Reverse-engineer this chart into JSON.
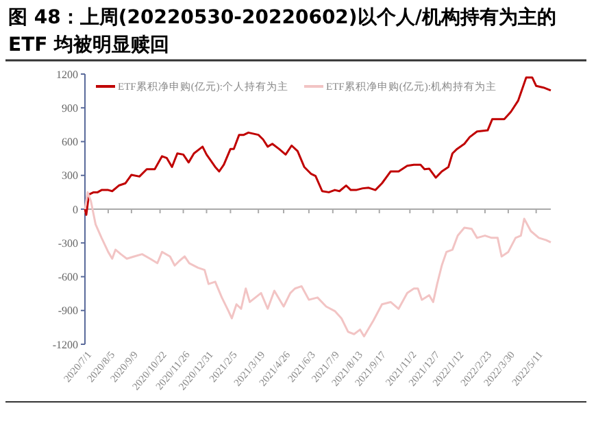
{
  "chart_data": {
    "type": "line",
    "title": "图 48：上周(20220530-20220602)以个人/机构持有为主的 ETF 均被明显赎回",
    "xlim": [
      "2020-07-01",
      "2022-06-02"
    ],
    "xticks": [
      {
        "value": "2020-07-01",
        "label": "2020/7/1"
      },
      {
        "value": "2020-08-05",
        "label": "2020/8/5"
      },
      {
        "value": "2020-09-09",
        "label": "2020/9/9"
      },
      {
        "value": "2020-10-22",
        "label": "2020/10/22"
      },
      {
        "value": "2020-11-26",
        "label": "2020/11/26"
      },
      {
        "value": "2020-12-31",
        "label": "2020/12/31"
      },
      {
        "value": "2021-02-05",
        "label": "2021/2/5"
      },
      {
        "value": "2021-03-19",
        "label": "2021/3/19"
      },
      {
        "value": "2021-04-26",
        "label": "2021/4/26"
      },
      {
        "value": "2021-06-03",
        "label": "2021/6/3"
      },
      {
        "value": "2021-07-09",
        "label": "2021/7/9"
      },
      {
        "value": "2021-08-13",
        "label": "2021/8/13"
      },
      {
        "value": "2021-09-17",
        "label": "2021/9/17"
      },
      {
        "value": "2021-11-02",
        "label": "2021/11/2"
      },
      {
        "value": "2021-12-07",
        "label": "2021/12/7"
      },
      {
        "value": "2022-01-12",
        "label": "2022/1/12"
      },
      {
        "value": "2022-02-23",
        "label": "2022/2/23"
      },
      {
        "value": "2022-03-30",
        "label": "2022/3/30"
      },
      {
        "value": "2022-05-11",
        "label": "2022/5/11"
      }
    ],
    "ylim": [
      -1200,
      1200
    ],
    "yticks": [
      -1200,
      -900,
      -600,
      -300,
      0,
      300,
      600,
      900,
      1200
    ],
    "legend": "top",
    "series": [
      {
        "name": "ETF累积净申购(亿元):个人持有为主",
        "color": "#c00000",
        "x": [
          "2020-07-01",
          "2020-07-03",
          "2020-07-07",
          "2020-07-14",
          "2020-07-20",
          "2020-07-26",
          "2020-08-05",
          "2020-08-11",
          "2020-08-21",
          "2020-08-31",
          "2020-09-09",
          "2020-09-21",
          "2020-10-02",
          "2020-10-14",
          "2020-10-25",
          "2020-11-01",
          "2020-11-09",
          "2020-11-17",
          "2020-11-26",
          "2020-12-04",
          "2020-12-12",
          "2020-12-25",
          "2020-12-31",
          "2021-01-06",
          "2021-01-13",
          "2021-01-19",
          "2021-01-26",
          "2021-02-05",
          "2021-02-10",
          "2021-02-18",
          "2021-02-25",
          "2021-03-04",
          "2021-03-19",
          "2021-03-26",
          "2021-04-02",
          "2021-04-09",
          "2021-04-19",
          "2021-04-29",
          "2021-05-08",
          "2021-05-17",
          "2021-05-27",
          "2021-06-06",
          "2021-06-13",
          "2021-06-23",
          "2021-07-03",
          "2021-07-12",
          "2021-07-19",
          "2021-07-29",
          "2021-08-05",
          "2021-08-13",
          "2021-08-23",
          "2021-09-01",
          "2021-09-11",
          "2021-09-21",
          "2021-10-04",
          "2021-10-16",
          "2021-10-29",
          "2021-11-08",
          "2021-11-18",
          "2021-11-24",
          "2021-12-01",
          "2021-12-11",
          "2021-12-20",
          "2021-12-30",
          "2022-01-05",
          "2022-01-12",
          "2022-01-23",
          "2022-01-31",
          "2022-02-11",
          "2022-02-27",
          "2022-03-06",
          "2022-03-14",
          "2022-03-24",
          "2022-04-03",
          "2022-04-14",
          "2022-04-26",
          "2022-05-05",
          "2022-05-11",
          "2022-05-22",
          "2022-06-02"
        ],
        "values": [
          0,
          -50,
          130,
          150,
          150,
          170,
          170,
          160,
          210,
          230,
          305,
          290,
          355,
          355,
          470,
          455,
          375,
          495,
          485,
          415,
          495,
          555,
          485,
          435,
          375,
          335,
          395,
          535,
          535,
          660,
          660,
          680,
          660,
          620,
          555,
          580,
          535,
          485,
          565,
          515,
          375,
          315,
          295,
          160,
          150,
          170,
          160,
          210,
          170,
          170,
          185,
          190,
          170,
          230,
          335,
          335,
          385,
          395,
          395,
          355,
          360,
          280,
          335,
          375,
          495,
          535,
          580,
          640,
          690,
          700,
          800,
          800,
          800,
          865,
          965,
          1170,
          1170,
          1095,
          1080,
          1055
        ]
      },
      {
        "name": "ETF累积净申购(亿元):机构持有为主",
        "color": "#f2c4c4",
        "x": [
          "2020-07-01",
          "2020-07-05",
          "2020-07-10",
          "2020-07-17",
          "2020-07-26",
          "2020-08-05",
          "2020-08-11",
          "2020-08-16",
          "2020-08-24",
          "2020-09-02",
          "2020-09-13",
          "2020-09-25",
          "2020-10-07",
          "2020-10-18",
          "2020-10-25",
          "2020-11-06",
          "2020-11-13",
          "2020-11-20",
          "2020-11-28",
          "2020-12-05",
          "2020-12-18",
          "2020-12-28",
          "2021-01-03",
          "2021-01-13",
          "2021-01-23",
          "2021-02-02",
          "2021-02-07",
          "2021-02-14",
          "2021-02-21",
          "2021-02-28",
          "2021-03-06",
          "2021-03-23",
          "2021-04-02",
          "2021-04-12",
          "2021-04-26",
          "2021-05-06",
          "2021-05-13",
          "2021-05-23",
          "2021-06-03",
          "2021-06-16",
          "2021-06-29",
          "2021-07-12",
          "2021-07-22",
          "2021-08-01",
          "2021-08-10",
          "2021-08-19",
          "2021-08-25",
          "2021-09-08",
          "2021-09-21",
          "2021-10-04",
          "2021-10-16",
          "2021-10-29",
          "2021-11-08",
          "2021-11-14",
          "2021-11-20",
          "2021-12-01",
          "2021-12-07",
          "2021-12-13",
          "2021-12-20",
          "2021-12-27",
          "2022-01-05",
          "2022-01-13",
          "2022-01-23",
          "2022-02-03",
          "2022-02-11",
          "2022-02-23",
          "2022-03-05",
          "2022-03-14",
          "2022-03-20",
          "2022-03-30",
          "2022-04-10",
          "2022-04-18",
          "2022-04-23",
          "2022-05-03",
          "2022-05-15",
          "2022-05-26",
          "2022-06-02"
        ],
        "values": [
          0,
          150,
          70,
          -135,
          -255,
          -380,
          -440,
          -360,
          -400,
          -440,
          -420,
          -400,
          -440,
          -480,
          -380,
          -420,
          -500,
          -460,
          -420,
          -480,
          -520,
          -540,
          -665,
          -645,
          -785,
          -905,
          -970,
          -845,
          -885,
          -705,
          -825,
          -745,
          -885,
          -725,
          -865,
          -745,
          -705,
          -685,
          -805,
          -785,
          -865,
          -905,
          -970,
          -1090,
          -1110,
          -1070,
          -1130,
          -990,
          -845,
          -825,
          -885,
          -745,
          -705,
          -705,
          -805,
          -765,
          -825,
          -665,
          -500,
          -380,
          -360,
          -235,
          -165,
          -175,
          -255,
          -235,
          -255,
          -255,
          -420,
          -380,
          -255,
          -235,
          -85,
          -195,
          -255,
          -275,
          -295
        ]
      }
    ]
  }
}
